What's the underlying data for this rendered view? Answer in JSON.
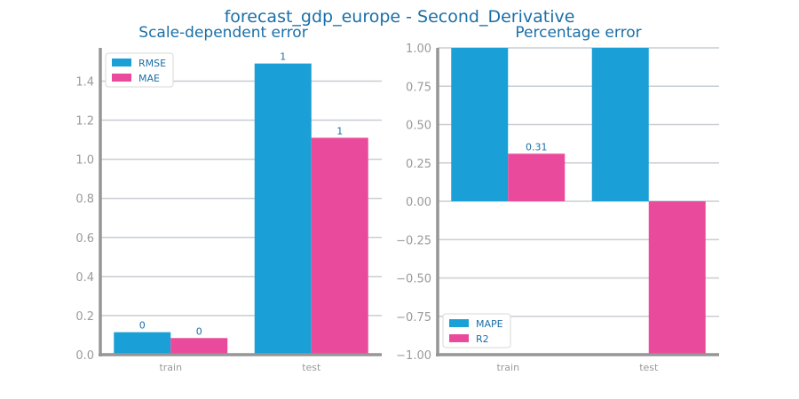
{
  "figure": {
    "title": "forecast_gdp_europe - Second_Derivative"
  },
  "colors": {
    "series1": "#1a9fd6",
    "series2": "#ea4a9b",
    "grid": "#c8cdd2",
    "axis": "#969696",
    "text": "#1a6fa8",
    "tick": "#9a9a9a"
  },
  "chart_data": [
    {
      "type": "bar",
      "title": "Scale-dependent error",
      "categories": [
        "train",
        "test"
      ],
      "series": [
        {
          "name": "RMSE",
          "values": [
            0.115,
            1.49
          ],
          "labels": [
            "0",
            "1"
          ]
        },
        {
          "name": "MAE",
          "values": [
            0.085,
            1.11
          ],
          "labels": [
            "0",
            "1"
          ]
        }
      ],
      "ylim": [
        0,
        1.57
      ],
      "yticks": [
        0.0,
        0.2,
        0.4,
        0.6,
        0.8,
        1.0,
        1.2,
        1.4
      ],
      "ytick_labels": [
        "0.0",
        "0.2",
        "0.4",
        "0.6",
        "0.8",
        "1.0",
        "1.2",
        "1.4"
      ],
      "grid": true,
      "legend": "top-left"
    },
    {
      "type": "bar",
      "title": "Percentage error",
      "categories": [
        "train",
        "test"
      ],
      "series": [
        {
          "name": "MAPE",
          "values": [
            1.0,
            1.0
          ],
          "labels": [
            "",
            ""
          ]
        },
        {
          "name": "R2",
          "values": [
            0.31,
            -1.0
          ],
          "labels": [
            "0.31",
            ""
          ]
        }
      ],
      "ylim": [
        -1.0,
        1.0
      ],
      "yticks": [
        -1.0,
        -0.75,
        -0.5,
        -0.25,
        0.0,
        0.25,
        0.5,
        0.75,
        1.0
      ],
      "ytick_labels": [
        "−1.00",
        "−0.75",
        "−0.50",
        "−0.25",
        "0.00",
        "0.25",
        "0.50",
        "0.75",
        "1.00"
      ],
      "grid": true,
      "legend": "bottom-left"
    }
  ]
}
